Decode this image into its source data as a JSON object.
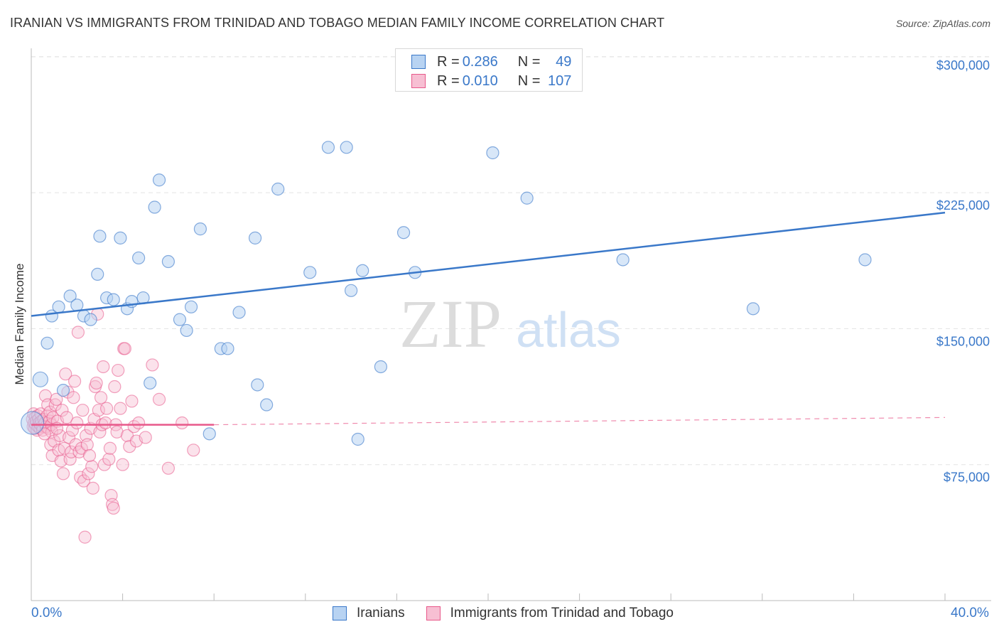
{
  "header": {
    "title": "IRANIAN VS IMMIGRANTS FROM TRINIDAD AND TOBAGO MEDIAN FAMILY INCOME CORRELATION CHART",
    "source": "Source: ZipAtlas.com"
  },
  "watermark": {
    "zip": "ZIP",
    "atlas": "atlas"
  },
  "legend_top": {
    "rows": [
      {
        "r_label": "R =",
        "r_value": "0.286",
        "n_label": "N =",
        "n_value": "49"
      },
      {
        "r_label": "R =",
        "r_value": "0.010",
        "n_label": "N =",
        "n_value": "107"
      }
    ]
  },
  "legend_bottom": {
    "series_a": "Iranians",
    "series_b": "Immigrants from Trinidad and Tobago"
  },
  "x_axis": {
    "min_label": "0.0%",
    "max_label": "40.0%"
  },
  "colors": {
    "blue": "#3a78c9",
    "blue_fill": "#b8d3f2",
    "pink": "#e8588a",
    "pink_fill": "#f7bfd3",
    "grid": "#e3e3e3"
  },
  "chart_data": {
    "type": "scatter",
    "title": "IRANIAN VS IMMIGRANTS FROM TRINIDAD AND TOBAGO MEDIAN FAMILY INCOME CORRELATION CHART",
    "xlabel": "",
    "ylabel": "Median Family Income",
    "xlim": [
      0,
      40
    ],
    "ylim": [
      0,
      310000
    ],
    "y_ticks": [
      {
        "value": 75000,
        "label": "$75,000"
      },
      {
        "value": 150000,
        "label": "$150,000"
      },
      {
        "value": 225000,
        "label": "$225,000"
      },
      {
        "value": 300000,
        "label": "$300,000"
      }
    ],
    "grid": true,
    "legend": "top-center",
    "series": [
      {
        "name": "Iranians",
        "r": 0.286,
        "n": 49,
        "trend": {
          "x": [
            0,
            40
          ],
          "y": [
            157000,
            214000
          ]
        },
        "points": [
          [
            0.05,
            98000
          ],
          [
            0.4,
            122000
          ],
          [
            0.7,
            142000
          ],
          [
            0.9,
            157000
          ],
          [
            1.2,
            162000
          ],
          [
            1.4,
            116000
          ],
          [
            1.7,
            168000
          ],
          [
            2.0,
            163000
          ],
          [
            2.3,
            157000
          ],
          [
            2.6,
            155000
          ],
          [
            2.9,
            180000
          ],
          [
            3.0,
            201000
          ],
          [
            3.3,
            167000
          ],
          [
            3.6,
            166000
          ],
          [
            3.9,
            200000
          ],
          [
            4.2,
            161000
          ],
          [
            4.4,
            165000
          ],
          [
            4.7,
            189000
          ],
          [
            4.9,
            167000
          ],
          [
            5.2,
            120000
          ],
          [
            5.4,
            217000
          ],
          [
            5.6,
            232000
          ],
          [
            6.0,
            187000
          ],
          [
            6.5,
            155000
          ],
          [
            6.8,
            149000
          ],
          [
            7.0,
            162000
          ],
          [
            7.4,
            205000
          ],
          [
            7.8,
            92000
          ],
          [
            8.3,
            139000
          ],
          [
            8.6,
            139000
          ],
          [
            9.1,
            159000
          ],
          [
            9.8,
            200000
          ],
          [
            9.9,
            119000
          ],
          [
            10.3,
            108000
          ],
          [
            10.8,
            227000
          ],
          [
            12.2,
            181000
          ],
          [
            13.0,
            250000
          ],
          [
            13.8,
            250000
          ],
          [
            14.0,
            171000
          ],
          [
            14.3,
            89000
          ],
          [
            14.5,
            182000
          ],
          [
            15.3,
            129000
          ],
          [
            16.3,
            203000
          ],
          [
            16.8,
            181000
          ],
          [
            20.2,
            247000
          ],
          [
            21.7,
            222000
          ],
          [
            25.9,
            188000
          ],
          [
            31.6,
            161000
          ],
          [
            36.5,
            188000
          ]
        ]
      },
      {
        "name": "Immigrants from Trinidad and Tobago",
        "r": 0.01,
        "n": 107,
        "trend_solid": {
          "x": [
            0,
            8
          ],
          "y": [
            97000,
            97000
          ]
        },
        "trend_dashed": {
          "x": [
            8,
            40
          ],
          "y": [
            97000,
            101000
          ]
        },
        "points": [
          [
            0.05,
            100000
          ],
          [
            0.08,
            96000
          ],
          [
            0.1,
            103000
          ],
          [
            0.12,
            98000
          ],
          [
            0.15,
            95000
          ],
          [
            0.18,
            101000
          ],
          [
            0.2,
            97000
          ],
          [
            0.22,
            99000
          ],
          [
            0.25,
            94000
          ],
          [
            0.28,
            102000
          ],
          [
            0.3,
            96000
          ],
          [
            0.32,
            100000
          ],
          [
            0.35,
            98000
          ],
          [
            0.38,
            95000
          ],
          [
            0.4,
            97000
          ],
          [
            0.42,
            103000
          ],
          [
            0.45,
            99000
          ],
          [
            0.48,
            96000
          ],
          [
            0.5,
            94000
          ],
          [
            0.55,
            100000
          ],
          [
            0.6,
            98000
          ],
          [
            0.62,
            113000
          ],
          [
            0.65,
            96000
          ],
          [
            0.7,
            102000
          ],
          [
            0.72,
            108000
          ],
          [
            0.75,
            95000
          ],
          [
            0.8,
            99000
          ],
          [
            0.82,
            104000
          ],
          [
            0.85,
            86000
          ],
          [
            0.88,
            97000
          ],
          [
            0.9,
            93000
          ],
          [
            0.92,
            80000
          ],
          [
            0.95,
            101000
          ],
          [
            1.0,
            88000
          ],
          [
            1.05,
            108000
          ],
          [
            1.1,
            111000
          ],
          [
            1.15,
            99000
          ],
          [
            1.2,
            83000
          ],
          [
            1.25,
            91000
          ],
          [
            1.3,
            77000
          ],
          [
            1.35,
            105000
          ],
          [
            1.4,
            70000
          ],
          [
            1.45,
            84000
          ],
          [
            1.5,
            125000
          ],
          [
            1.55,
            101000
          ],
          [
            1.6,
            115000
          ],
          [
            1.65,
            90000
          ],
          [
            1.7,
            78000
          ],
          [
            1.75,
            82000
          ],
          [
            1.8,
            94000
          ],
          [
            1.85,
            112000
          ],
          [
            1.9,
            121000
          ],
          [
            1.95,
            86000
          ],
          [
            2.0,
            98000
          ],
          [
            2.05,
            148000
          ],
          [
            2.1,
            82000
          ],
          [
            2.15,
            68000
          ],
          [
            2.2,
            84000
          ],
          [
            2.25,
            105000
          ],
          [
            2.3,
            66000
          ],
          [
            2.4,
            91000
          ],
          [
            2.45,
            86000
          ],
          [
            2.5,
            70000
          ],
          [
            2.6,
            95000
          ],
          [
            2.65,
            74000
          ],
          [
            2.7,
            62000
          ],
          [
            2.75,
            100000
          ],
          [
            2.8,
            118000
          ],
          [
            2.85,
            120000
          ],
          [
            2.9,
            158000
          ],
          [
            2.95,
            105000
          ],
          [
            3.0,
            93000
          ],
          [
            3.1,
            97000
          ],
          [
            3.15,
            129000
          ],
          [
            3.2,
            75000
          ],
          [
            3.25,
            98000
          ],
          [
            3.3,
            106000
          ],
          [
            3.4,
            78000
          ],
          [
            3.45,
            84000
          ],
          [
            3.5,
            58000
          ],
          [
            3.55,
            53000
          ],
          [
            3.6,
            51000
          ],
          [
            3.65,
            118000
          ],
          [
            3.7,
            97000
          ],
          [
            3.75,
            93000
          ],
          [
            3.8,
            127000
          ],
          [
            3.9,
            106000
          ],
          [
            4.0,
            75000
          ],
          [
            4.05,
            139000
          ],
          [
            4.1,
            139000
          ],
          [
            4.2,
            91000
          ],
          [
            4.3,
            85000
          ],
          [
            4.4,
            110000
          ],
          [
            4.5,
            96000
          ],
          [
            4.6,
            88000
          ],
          [
            4.7,
            98000
          ],
          [
            5.0,
            90000
          ],
          [
            5.3,
            130000
          ],
          [
            5.6,
            111000
          ],
          [
            6.0,
            73000
          ],
          [
            6.6,
            98000
          ],
          [
            7.1,
            83000
          ],
          [
            2.35,
            35000
          ],
          [
            1.12,
            95000
          ],
          [
            0.58,
            92000
          ],
          [
            2.55,
            80000
          ],
          [
            3.05,
            112000
          ]
        ]
      }
    ]
  }
}
